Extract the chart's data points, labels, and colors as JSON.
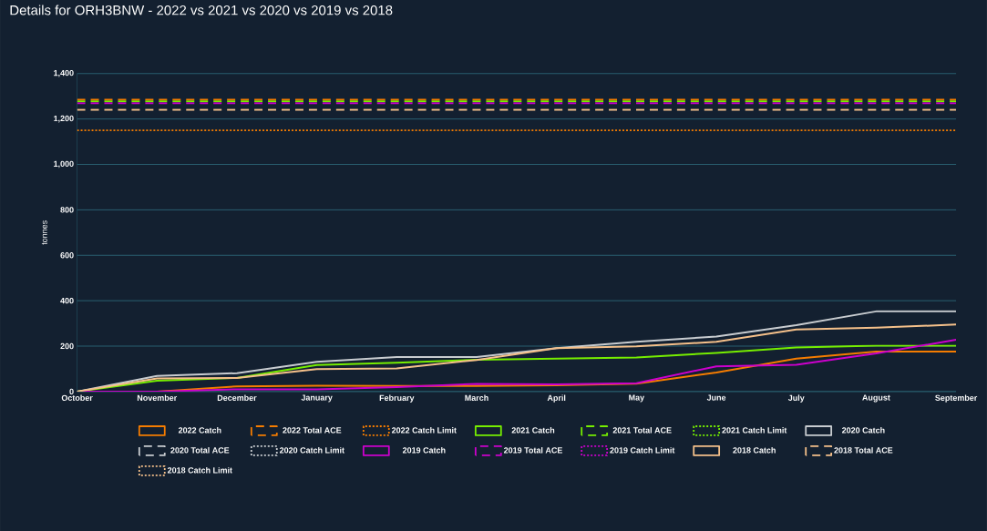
{
  "chart_data": {
    "type": "line",
    "title": "Details for ORH3BNW - 2022 vs 2021 vs 2020 vs 2019 vs 2018",
    "ylabel": "tonnes",
    "categories": [
      "October",
      "November",
      "December",
      "January",
      "February",
      "March",
      "April",
      "May",
      "June",
      "July",
      "August",
      "September"
    ],
    "ylim": [
      0,
      1400
    ],
    "yticks": [
      {
        "value": 0,
        "label": "0"
      },
      {
        "value": 200,
        "label": "200"
      },
      {
        "value": 400,
        "label": "400"
      },
      {
        "value": 600,
        "label": "600"
      },
      {
        "value": 800,
        "label": "800"
      },
      {
        "value": 1000,
        "label": "1,000"
      },
      {
        "value": 1200,
        "label": "1,200"
      },
      {
        "value": 1400,
        "label": "1,400"
      }
    ],
    "grid": "y",
    "legend": "bottom",
    "marker": "none",
    "series": [
      {
        "name": "2022 Catch",
        "color": "#f57c00",
        "line_style": "solid",
        "values": [
          0,
          0,
          23,
          26,
          25,
          25,
          28,
          35,
          84,
          145,
          176,
          176
        ]
      },
      {
        "name": "2022 Total ACE",
        "color": "#f57c00",
        "line_style": "dashed",
        "values": [
          1285,
          1285,
          1285,
          1285,
          1285,
          1285,
          1285,
          1285,
          1285,
          1285,
          1285,
          1285
        ]
      },
      {
        "name": "2022 Catch Limit",
        "color": "#f57c00",
        "line_style": "dotted",
        "values": [
          1150,
          1150,
          1150,
          1150,
          1150,
          1150,
          1150,
          1150,
          1150,
          1150,
          1150,
          1150
        ]
      },
      {
        "name": "2021 Catch",
        "color": "#76ee00",
        "line_style": "solid",
        "values": [
          0,
          48,
          60,
          117,
          127,
          140,
          145,
          150,
          170,
          194,
          202,
          202
        ]
      },
      {
        "name": "2021 Total ACE",
        "color": "#76ee00",
        "line_style": "dashed",
        "values": [
          1278,
          1278,
          1278,
          1278,
          1278,
          1278,
          1278,
          1278,
          1278,
          1278,
          1278,
          1278
        ]
      },
      {
        "name": "2021 Catch Limit",
        "color": "#76ee00",
        "line_style": "dotted",
        "values": [
          null,
          null,
          null,
          null,
          null,
          null,
          null,
          null,
          null,
          null,
          null,
          null
        ]
      },
      {
        "name": "2020 Catch",
        "color": "#c8ccd0",
        "line_style": "solid",
        "values": [
          0,
          69,
          81,
          131,
          152,
          152,
          191,
          219,
          242,
          292,
          353,
          353
        ]
      },
      {
        "name": "2020 Total ACE",
        "color": "#c8ccd0",
        "line_style": "dashed",
        "values": [
          null,
          null,
          null,
          null,
          null,
          null,
          null,
          null,
          null,
          null,
          null,
          null
        ]
      },
      {
        "name": "2020 Catch Limit",
        "color": "#c8ccd0",
        "line_style": "dotted",
        "values": [
          null,
          null,
          null,
          null,
          null,
          null,
          null,
          null,
          null,
          null,
          null,
          null
        ]
      },
      {
        "name": "2019 Catch",
        "color": "#cc00cc",
        "line_style": "solid",
        "values": [
          0,
          0,
          10,
          10,
          20,
          34,
          32,
          37,
          111,
          118,
          168,
          228
        ]
      },
      {
        "name": "2019 Total ACE",
        "color": "#cc00cc",
        "line_style": "dashed",
        "values": [
          1270,
          1270,
          1270,
          1270,
          1270,
          1270,
          1270,
          1270,
          1270,
          1270,
          1270,
          1270
        ]
      },
      {
        "name": "2019 Catch Limit",
        "color": "#cc00cc",
        "line_style": "dotted",
        "values": [
          null,
          null,
          null,
          null,
          null,
          null,
          null,
          null,
          null,
          null,
          null,
          null
        ]
      },
      {
        "name": "2018 Catch",
        "color": "#f5c08a",
        "line_style": "solid",
        "values": [
          0,
          58,
          60,
          99,
          102,
          139,
          191,
          199,
          219,
          273,
          281,
          295
        ]
      },
      {
        "name": "2018 Total ACE",
        "color": "#f5c08a",
        "line_style": "dashed",
        "values": [
          1241,
          1241,
          1241,
          1241,
          1241,
          1241,
          1241,
          1241,
          1241,
          1241,
          1241,
          1241
        ]
      },
      {
        "name": "2018 Catch Limit",
        "color": "#f5c08a",
        "line_style": "dotted",
        "values": [
          null,
          null,
          null,
          null,
          null,
          null,
          null,
          null,
          null,
          null,
          null,
          null
        ]
      }
    ]
  }
}
